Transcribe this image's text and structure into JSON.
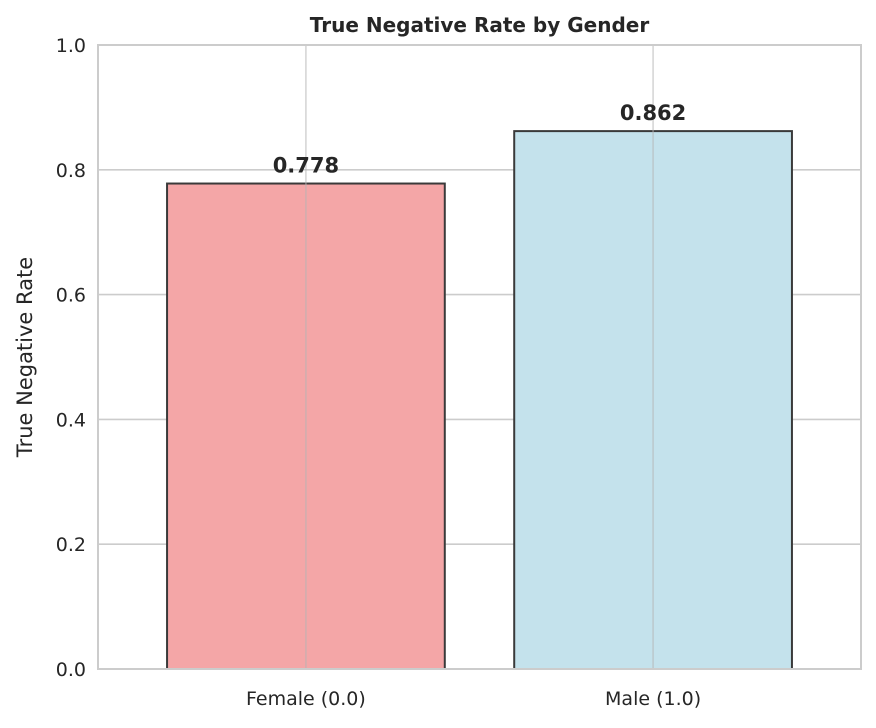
{
  "chart_data": {
    "type": "bar",
    "title": "True Negative Rate by Gender",
    "xlabel": "",
    "ylabel": "True Negative Rate",
    "categories": [
      "Female (0.0)",
      "Male (1.0)"
    ],
    "values": [
      0.778,
      0.862
    ],
    "value_labels": [
      "0.778",
      "0.862"
    ],
    "ylim": [
      0,
      1.0
    ],
    "yticks": [
      0.0,
      0.2,
      0.4,
      0.6,
      0.8,
      1.0
    ],
    "ytick_labels": [
      "0.0",
      "0.2",
      "0.4",
      "0.6",
      "0.8",
      "1.0"
    ],
    "bar_colors": [
      "#f4a6a7",
      "#c4e2ec"
    ],
    "bar_edge_color": "#3a3a3a",
    "grid": true,
    "grid_color": "#cccccc",
    "legend": "none"
  }
}
